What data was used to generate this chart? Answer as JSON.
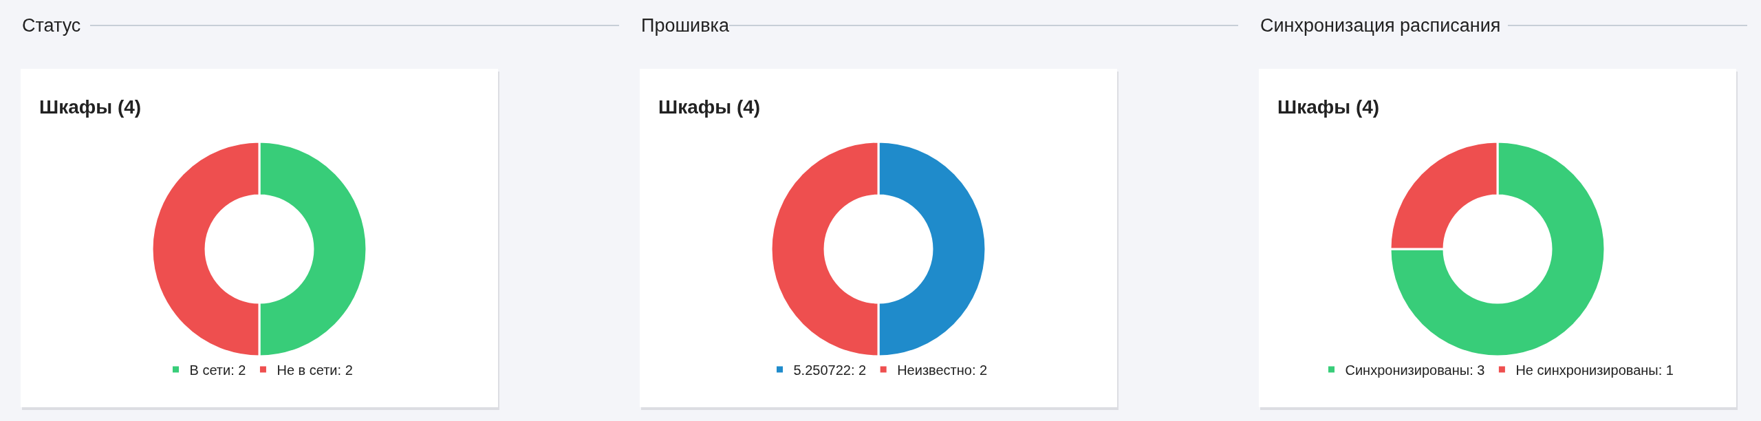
{
  "chart_data": [
    {
      "type": "donut",
      "title": "Статус",
      "subtitle": "Шкафы (4)",
      "categories": [
        "В сети: 2",
        "Не в сети: 2"
      ],
      "values": [
        2,
        2
      ],
      "colors": [
        "#38cd79",
        "#ee4f4f"
      ],
      "legend": "bottom"
    },
    {
      "type": "donut",
      "title": "Прошивка",
      "subtitle": "Шкафы (4)",
      "categories": [
        "5.250722: 2",
        "Неизвестно: 2"
      ],
      "values": [
        2,
        2
      ],
      "colors": [
        "#1f8bcb",
        "#ee4f4f"
      ],
      "legend": "bottom"
    },
    {
      "type": "donut",
      "title": "Синхронизация расписания",
      "subtitle": "Шкафы (4)",
      "categories": [
        "Синхронизированы: 3",
        "Не синхронизированы: 1"
      ],
      "values": [
        3,
        1
      ],
      "colors": [
        "#38cd79",
        "#ee4f4f"
      ],
      "legend": "bottom"
    }
  ]
}
